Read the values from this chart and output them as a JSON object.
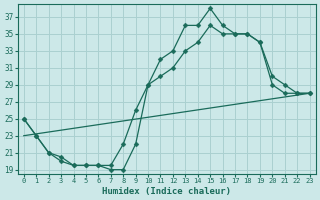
{
  "xlabel": "Humidex (Indice chaleur)",
  "bg_color": "#cce8e8",
  "line_color": "#1a6b5a",
  "grid_color": "#aad0d0",
  "xlim": [
    -0.5,
    23.5
  ],
  "ylim": [
    18.5,
    38.5
  ],
  "yticks": [
    19,
    21,
    23,
    25,
    27,
    29,
    31,
    33,
    35,
    37
  ],
  "xticks": [
    0,
    1,
    2,
    3,
    4,
    5,
    6,
    7,
    8,
    9,
    10,
    11,
    12,
    13,
    14,
    15,
    16,
    17,
    18,
    19,
    20,
    21,
    22,
    23
  ],
  "line1_x": [
    0,
    1,
    2,
    3,
    4,
    5,
    6,
    7,
    8,
    9,
    10,
    11,
    12,
    13,
    14,
    15,
    16,
    17,
    18,
    19,
    20,
    21,
    22,
    23
  ],
  "line1_y": [
    25,
    23,
    21,
    20,
    19.5,
    19.5,
    19.5,
    19,
    19,
    22,
    29,
    32,
    33,
    36,
    36,
    38,
    36,
    35,
    35,
    34,
    29,
    28,
    28,
    28
  ],
  "line2_x": [
    0,
    1,
    2,
    3,
    4,
    5,
    6,
    7,
    8,
    9,
    10,
    11,
    12,
    13,
    14,
    15,
    16,
    17,
    18,
    19,
    20,
    21,
    22,
    23
  ],
  "line2_y": [
    25,
    23,
    21,
    20.5,
    19.5,
    19.5,
    19.5,
    19.5,
    22,
    26,
    29,
    30,
    31,
    33,
    34,
    36,
    35,
    35,
    35,
    34,
    30,
    29,
    28,
    28
  ],
  "line3_x": [
    0,
    23
  ],
  "line3_y": [
    23,
    28
  ]
}
